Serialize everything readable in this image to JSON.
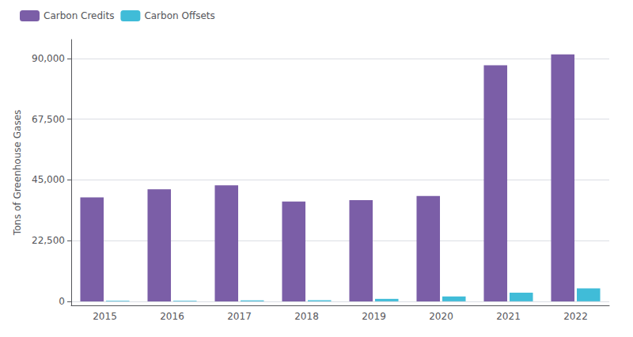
{
  "chart_data": {
    "type": "bar",
    "categories": [
      "2015",
      "2016",
      "2017",
      "2018",
      "2019",
      "2020",
      "2021",
      "2022"
    ],
    "series": [
      {
        "name": "Carbon Credits",
        "color": "#7B5EA7",
        "values": [
          38500,
          41500,
          43000,
          37000,
          37500,
          39000,
          87500,
          91500
        ]
      },
      {
        "name": "Carbon Offsets",
        "color": "#40BCD8",
        "values": [
          150,
          200,
          350,
          400,
          900,
          1800,
          3200,
          4800
        ]
      }
    ],
    "ylabel": "Tons of Greenhouse Gases",
    "ylim": [
      -1500,
      97000
    ],
    "yticks": [
      0,
      {
        "value": 22500,
        "label": "22,500"
      },
      {
        "value": 45000,
        "label": "45,000"
      },
      {
        "value": 67500,
        "label": "67,500"
      },
      {
        "value": 90000,
        "label": "90,000"
      }
    ],
    "grid": true,
    "legend": "upper left"
  }
}
